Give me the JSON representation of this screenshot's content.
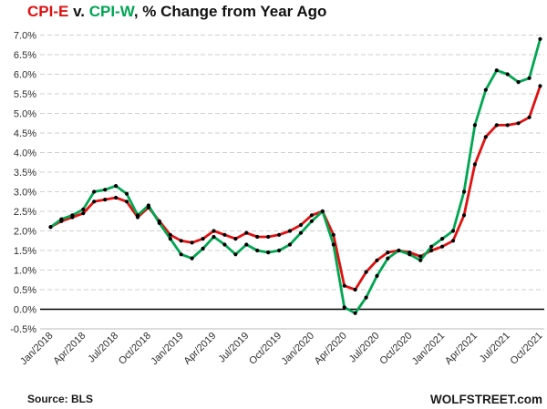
{
  "title": {
    "series1_label": "CPI-E",
    "separator": " v. ",
    "series2_label": "CPI-W",
    "suffix": ", % Change from Year Ago"
  },
  "footer": {
    "source": "Source: BLS",
    "brand": "WOLFSTREET.com"
  },
  "colors": {
    "cpi_e": "#e01111",
    "cpi_w": "#00a651",
    "grid": "#cfcfcf",
    "zero_line": "#000000",
    "axis_line": "#b8b8b8",
    "marker": "#000000",
    "title_text": "#111111"
  },
  "chart_data": {
    "type": "line",
    "title": "CPI-E v. CPI-W, % Change from Year Ago",
    "xlabel": "",
    "ylabel": "",
    "ylim": [
      -0.5,
      7.0
    ],
    "ytick_step": 0.5,
    "grid": true,
    "legend_position": "in-title",
    "y_tick_labels": [
      "7.0%",
      "6.5%",
      "6.0%",
      "5.5%",
      "5.0%",
      "4.5%",
      "4.0%",
      "3.5%",
      "3.0%",
      "2.5%",
      "2.0%",
      "1.5%",
      "1.0%",
      "0.5%",
      "0.0%",
      "-0.5%"
    ],
    "x": [
      "Jan/2018",
      "Feb/2018",
      "Mar/2018",
      "Apr/2018",
      "May/2018",
      "Jun/2018",
      "Jul/2018",
      "Aug/2018",
      "Sep/2018",
      "Oct/2018",
      "Nov/2018",
      "Dec/2018",
      "Jan/2019",
      "Feb/2019",
      "Mar/2019",
      "Apr/2019",
      "May/2019",
      "Jun/2019",
      "Jul/2019",
      "Aug/2019",
      "Sep/2019",
      "Oct/2019",
      "Nov/2019",
      "Dec/2019",
      "Jan/2020",
      "Feb/2020",
      "Mar/2020",
      "Apr/2020",
      "May/2020",
      "Jun/2020",
      "Jul/2020",
      "Aug/2020",
      "Sep/2020",
      "Oct/2020",
      "Nov/2020",
      "Dec/2020",
      "Jan/2021",
      "Feb/2021",
      "Mar/2021",
      "Apr/2021",
      "May/2021",
      "Jun/2021",
      "Jul/2021",
      "Aug/2021",
      "Sep/2021",
      "Oct/2021"
    ],
    "x_tick_labels": [
      "Jan/2018",
      "Apr/2018",
      "Jul/2018",
      "Oct/2018",
      "Jan/2019",
      "Apr/2019",
      "Jul/2019",
      "Oct/2019",
      "Jan/2020",
      "Apr/2020",
      "Jul/2020",
      "Oct/2020",
      "Jan/2021",
      "Apr/2021",
      "Jul/2021",
      "Oct/2021"
    ],
    "x_tick_every": 3,
    "series": [
      {
        "name": "CPI-E",
        "color": "#e01111",
        "values": [
          2.1,
          2.25,
          2.35,
          2.45,
          2.75,
          2.8,
          2.85,
          2.75,
          2.35,
          2.6,
          2.25,
          1.9,
          1.75,
          1.7,
          1.8,
          2.0,
          1.9,
          1.8,
          1.95,
          1.85,
          1.85,
          1.9,
          2.0,
          2.15,
          2.4,
          2.5,
          1.9,
          0.6,
          0.5,
          0.95,
          1.25,
          1.45,
          1.5,
          1.45,
          1.35,
          1.5,
          1.6,
          1.75,
          2.4,
          3.7,
          4.4,
          4.7,
          4.7,
          4.75,
          4.9,
          5.7
        ]
      },
      {
        "name": "CPI-W",
        "color": "#00a651",
        "values": [
          2.1,
          2.3,
          2.4,
          2.55,
          3.0,
          3.05,
          3.15,
          2.95,
          2.4,
          2.65,
          2.2,
          1.8,
          1.4,
          1.3,
          1.55,
          1.85,
          1.65,
          1.4,
          1.65,
          1.5,
          1.45,
          1.5,
          1.65,
          1.95,
          2.25,
          2.5,
          1.65,
          0.05,
          -0.1,
          0.3,
          0.85,
          1.3,
          1.5,
          1.4,
          1.25,
          1.6,
          1.8,
          2.0,
          3.0,
          4.7,
          5.6,
          6.1,
          6.0,
          5.8,
          5.9,
          6.9
        ]
      }
    ]
  }
}
